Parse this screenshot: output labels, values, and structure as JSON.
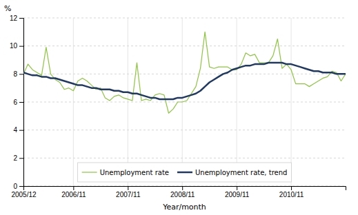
{
  "chart_data": {
    "type": "line",
    "x_label": "Year/month",
    "y_label": "%",
    "categories": [
      "2005/12",
      null,
      null,
      null,
      null,
      null,
      null,
      null,
      null,
      null,
      null,
      "2006/11",
      null,
      null,
      null,
      null,
      null,
      null,
      null,
      null,
      null,
      null,
      null,
      "2007/11",
      null,
      null,
      null,
      null,
      null,
      null,
      null,
      null,
      null,
      null,
      null,
      "2008/11",
      null,
      null,
      null,
      null,
      null,
      null,
      null,
      null,
      null,
      null,
      null,
      "2009/11",
      null,
      null,
      null,
      null,
      null,
      null,
      null,
      null,
      null,
      null,
      null,
      "2010/11",
      null,
      null,
      null,
      null,
      null,
      null,
      null,
      null,
      null,
      null,
      null,
      null
    ],
    "series": [
      {
        "name": "Unemployment rate",
        "color": "#8dc63f",
        "values": [
          8.0,
          8.7,
          8.3,
          8.1,
          7.9,
          9.9,
          8.0,
          7.6,
          7.4,
          6.9,
          7.0,
          6.8,
          7.5,
          7.7,
          7.5,
          7.2,
          6.9,
          7.0,
          6.3,
          6.1,
          6.4,
          6.5,
          6.3,
          6.2,
          6.1,
          8.8,
          6.1,
          6.2,
          6.1,
          6.5,
          6.6,
          6.5,
          5.2,
          5.5,
          6.0,
          6.0,
          6.1,
          6.6,
          7.1,
          8.4,
          11.0,
          8.5,
          8.4,
          8.5,
          8.5,
          8.5,
          8.3,
          8.3,
          8.7,
          9.5,
          9.3,
          9.4,
          8.8,
          8.8,
          8.8,
          9.3,
          10.5,
          8.4,
          8.7,
          8.3,
          7.3,
          7.3,
          7.3,
          7.1,
          7.3,
          7.5,
          7.7,
          7.8,
          8.2,
          8.1,
          7.5,
          8.0
        ]
      },
      {
        "name": "Unemployment rate, trend",
        "color": "#1f3864",
        "values": [
          8.1,
          8.0,
          7.9,
          7.9,
          7.8,
          7.8,
          7.7,
          7.7,
          7.6,
          7.5,
          7.4,
          7.3,
          7.2,
          7.2,
          7.1,
          7.0,
          7.0,
          6.9,
          6.9,
          6.9,
          6.8,
          6.8,
          6.7,
          6.7,
          6.6,
          6.6,
          6.5,
          6.4,
          6.3,
          6.3,
          6.2,
          6.2,
          6.2,
          6.2,
          6.3,
          6.3,
          6.4,
          6.5,
          6.6,
          6.8,
          7.1,
          7.4,
          7.6,
          7.8,
          8.0,
          8.1,
          8.3,
          8.4,
          8.5,
          8.6,
          8.6,
          8.7,
          8.7,
          8.7,
          8.8,
          8.8,
          8.8,
          8.8,
          8.7,
          8.7,
          8.6,
          8.5,
          8.4,
          8.3,
          8.2,
          8.2,
          8.1,
          8.1,
          8.1,
          8.0,
          8.0,
          8.0
        ]
      }
    ],
    "ylim": [
      0,
      12
    ],
    "yticks": [
      0,
      2,
      4,
      6,
      8,
      10,
      12
    ],
    "grid": true,
    "legend": "bottom"
  }
}
